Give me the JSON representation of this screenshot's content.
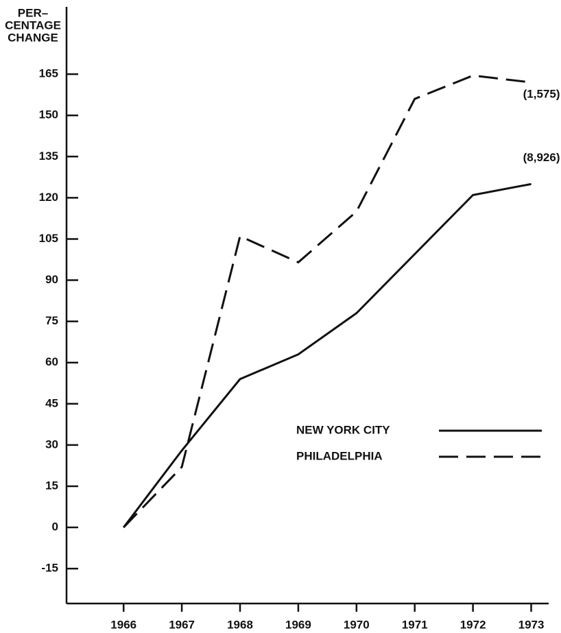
{
  "chart_data": {
    "type": "line",
    "y_label": [
      "PER–",
      "CENTAGE",
      "CHANGE"
    ],
    "x": [
      1966,
      1967,
      1968,
      1969,
      1970,
      1971,
      1972,
      1973
    ],
    "xlim": [
      1965.02,
      1973.3
    ],
    "xticks": [
      1966,
      1967,
      1968,
      1969,
      1970,
      1971,
      1972,
      1973
    ],
    "ylim": [
      -27.7,
      189.5
    ],
    "yticks": [
      -15,
      0,
      15,
      30,
      45,
      60,
      75,
      90,
      105,
      120,
      135,
      150,
      165
    ],
    "series": [
      {
        "name": "NEW YORK CITY",
        "color": "#111111",
        "dash": "solid",
        "end_label": "(8,926)",
        "values": [
          0,
          28,
          54,
          63,
          78,
          99.5,
          121,
          125
        ]
      },
      {
        "name": "PHILADELPHIA",
        "color": "#111111",
        "dash": "dashed",
        "end_label": "(1,575)",
        "values": [
          0,
          22,
          106,
          96.5,
          115,
          156,
          164.5,
          162
        ]
      }
    ],
    "legend": "lower right",
    "grid": false
  }
}
